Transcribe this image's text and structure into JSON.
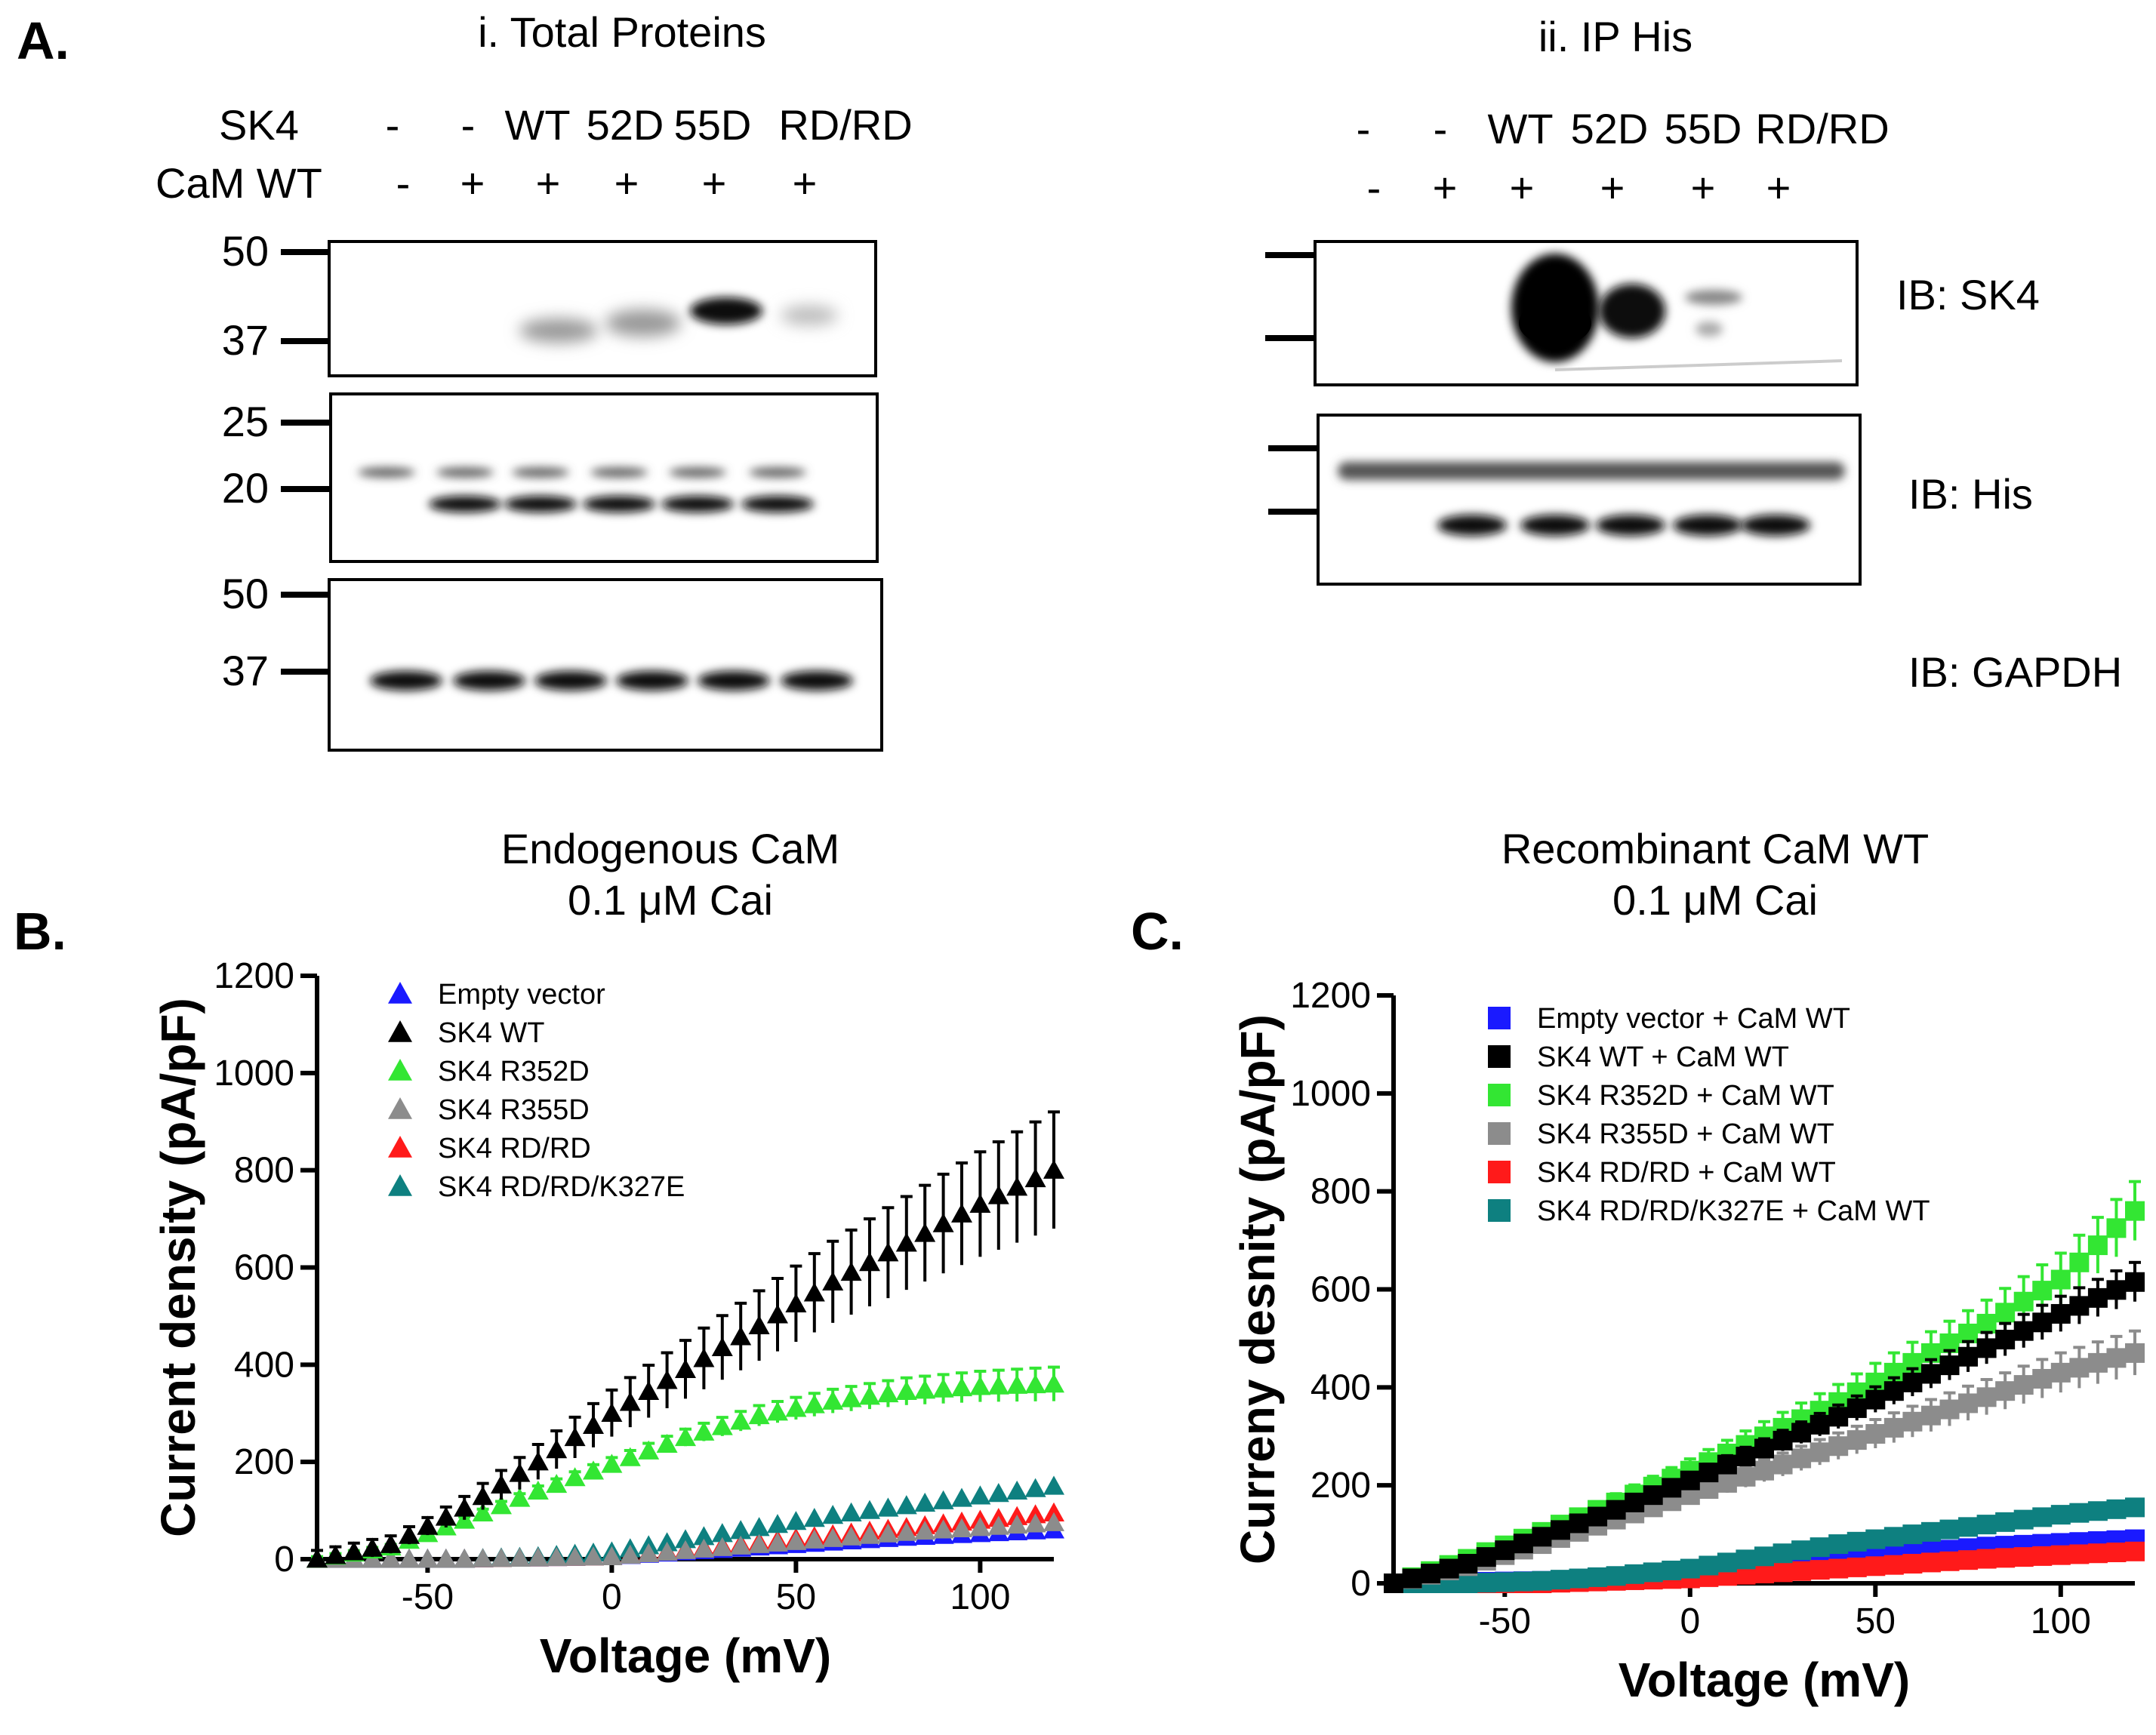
{
  "panel_a": {
    "label": "A.",
    "total_title": "i. Total Proteins",
    "ip_title": "ii. IP His",
    "sk4_row_label": "SK4",
    "cam_row_label": "CaM WT",
    "sk4_lanes": [
      "-",
      "-",
      "WT",
      "52D",
      "55D",
      "RD/RD"
    ],
    "cam_lanes": [
      "-",
      "+",
      "+",
      "+",
      "+",
      "+"
    ],
    "markers_blot1": [
      "50",
      "37"
    ],
    "markers_blot2": [
      "25",
      "20"
    ],
    "markers_blot3": [
      "50",
      "37"
    ],
    "ib_labels": [
      "IB: SK4",
      "IB: His",
      "IB: GAPDH"
    ]
  },
  "panel_b": {
    "label": "B.",
    "title_line1": "Endogenous CaM",
    "title_line2": "0.1 μM Cai"
  },
  "panel_c": {
    "label": "C.",
    "title_line1": "Recombinant CaM WT",
    "title_line2": "0.1 μM Cai"
  },
  "chart_data": [
    {
      "type": "scatter",
      "title": "Endogenous CaM 0.1 μM Cai",
      "xlabel": "Voltage (mV)",
      "ylabel": "Current density (pA/pF)",
      "xlim": [
        -80,
        120
      ],
      "ylim": [
        0,
        1200
      ],
      "xticks": [
        -50,
        0,
        50,
        100
      ],
      "yticks": [
        0,
        200,
        400,
        600,
        800,
        1000,
        1200
      ],
      "marker": "triangle",
      "legend_position": "top-left",
      "series": [
        {
          "name": "Empty vector",
          "color": "#1a1aff",
          "x": [
            -80,
            -40,
            0,
            40,
            80,
            120
          ],
          "y": [
            0,
            0,
            5,
            25,
            45,
            60
          ]
        },
        {
          "name": "SK4 WT",
          "color": "#000000",
          "x": [
            -80,
            -60,
            -40,
            -20,
            0,
            20,
            40,
            60,
            80,
            100,
            120
          ],
          "y": [
            0,
            30,
            105,
            200,
            300,
            390,
            480,
            570,
            650,
            730,
            800
          ],
          "err": 120
        },
        {
          "name": "SK4 R352D",
          "color": "#33e633",
          "x": [
            -80,
            -60,
            -40,
            -20,
            0,
            20,
            40,
            60,
            80,
            100,
            120
          ],
          "y": [
            0,
            25,
            80,
            140,
            195,
            250,
            295,
            325,
            345,
            355,
            360
          ],
          "err": 35
        },
        {
          "name": "SK4 R355D",
          "color": "#8c8c8c",
          "x": [
            -80,
            -40,
            0,
            40,
            80,
            120
          ],
          "y": [
            0,
            0,
            5,
            30,
            55,
            75
          ]
        },
        {
          "name": "SK4 RD/RD",
          "color": "#ff1a1a",
          "x": [
            -80,
            -40,
            0,
            40,
            80,
            120
          ],
          "y": [
            0,
            0,
            5,
            35,
            65,
            95
          ]
        },
        {
          "name": "SK4 RD/RD/K327E",
          "color": "#0e8080",
          "x": [
            -80,
            -40,
            -20,
            0,
            20,
            40,
            60,
            80,
            100,
            120
          ],
          "y": [
            0,
            0,
            5,
            15,
            40,
            65,
            90,
            110,
            130,
            150
          ]
        }
      ]
    },
    {
      "type": "scatter",
      "title": "Recombinant CaM WT 0.1 μM Cai",
      "xlabel": "Voltage (mV)",
      "ylabel": "Curreny desnity (pA/pF)",
      "xlim": [
        -80,
        120
      ],
      "ylim": [
        0,
        1200
      ],
      "xticks": [
        -50,
        0,
        50,
        100
      ],
      "yticks": [
        0,
        200,
        400,
        600,
        800,
        1000,
        1200
      ],
      "marker": "square",
      "legend_position": "top-left",
      "series": [
        {
          "name": "Empty vector + CaM WT",
          "color": "#1a1aff",
          "x": [
            -80,
            -40,
            0,
            40,
            80,
            120
          ],
          "y": [
            0,
            5,
            20,
            50,
            75,
            90
          ]
        },
        {
          "name": "SK4 WT + CaM WT",
          "color": "#000000",
          "x": [
            -80,
            -60,
            -40,
            -20,
            0,
            20,
            40,
            60,
            80,
            100,
            120
          ],
          "y": [
            0,
            40,
            95,
            150,
            210,
            275,
            340,
            410,
            480,
            550,
            615
          ],
          "err": 40
        },
        {
          "name": "SK4 R352D + CaM WT",
          "color": "#33e633",
          "x": [
            -80,
            -60,
            -40,
            -20,
            0,
            20,
            40,
            60,
            80,
            100,
            120
          ],
          "y": [
            0,
            50,
            105,
            165,
            230,
            300,
            370,
            450,
            530,
            620,
            760
          ],
          "err": 60
        },
        {
          "name": "SK4 R355D + CaM WT",
          "color": "#8c8c8c",
          "x": [
            -80,
            -60,
            -40,
            -20,
            0,
            20,
            40,
            60,
            80,
            100,
            120
          ],
          "y": [
            0,
            35,
            80,
            130,
            180,
            230,
            280,
            330,
            380,
            430,
            470
          ],
          "err": 45
        },
        {
          "name": "SK4 RD/RD + CaM WT",
          "color": "#ff1a1a",
          "x": [
            -80,
            -40,
            0,
            40,
            80,
            120
          ],
          "y": [
            0,
            0,
            10,
            30,
            50,
            65
          ]
        },
        {
          "name": "SK4 RD/RD/K327E + CaM WT",
          "color": "#0e8080",
          "x": [
            -80,
            -60,
            -40,
            -20,
            0,
            20,
            40,
            60,
            80,
            100,
            120
          ],
          "y": [
            0,
            0,
            5,
            15,
            30,
            55,
            80,
            100,
            120,
            140,
            155
          ]
        }
      ]
    }
  ]
}
